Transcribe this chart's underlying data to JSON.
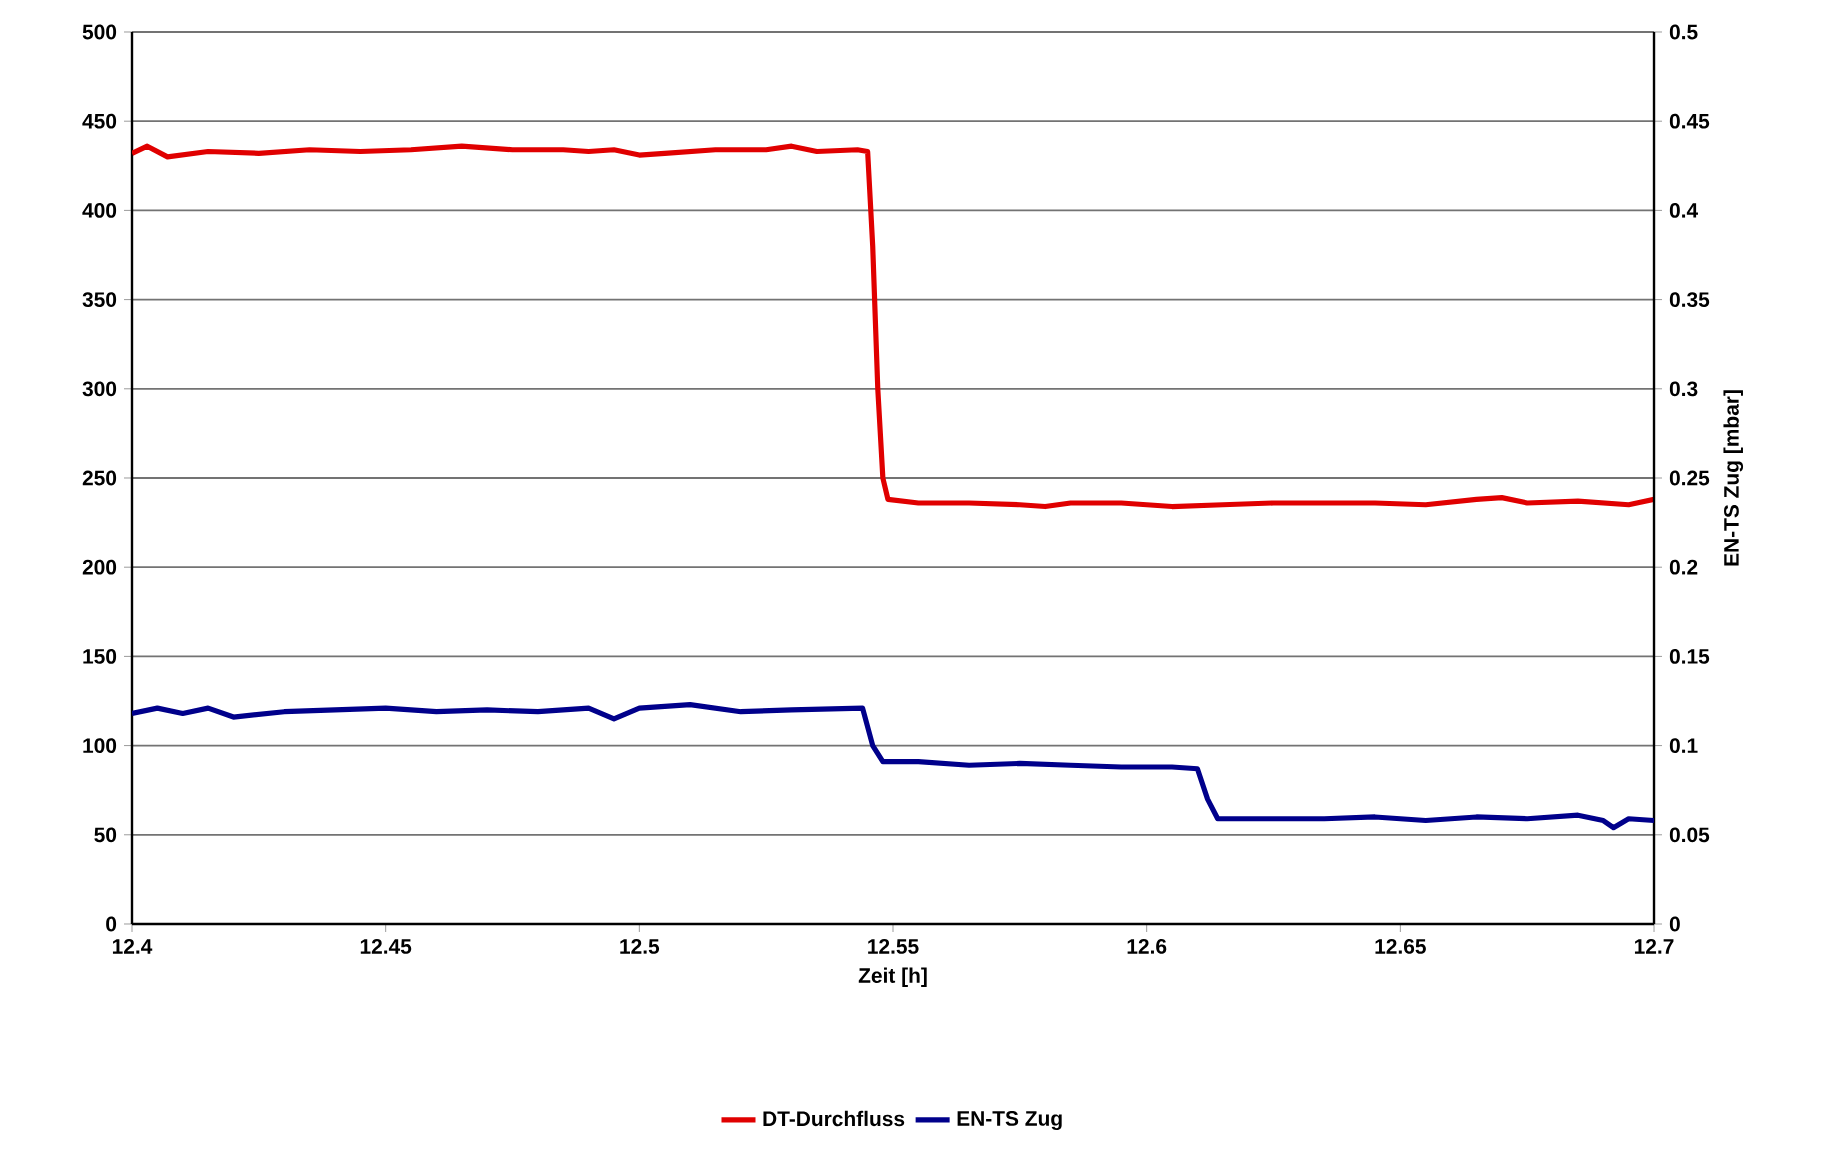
{
  "chart_data": {
    "type": "line",
    "xlabel": "Zeit [h]",
    "y2label": "EN-TS Zug [mbar]",
    "xlim": [
      12.4,
      12.7
    ],
    "xticks": [
      12.4,
      12.45,
      12.5,
      12.55,
      12.6,
      12.65,
      12.7
    ],
    "ylim": [
      0,
      500
    ],
    "yticks": [
      0,
      50,
      100,
      150,
      200,
      250,
      300,
      350,
      400,
      450,
      500
    ],
    "y2lim": [
      0,
      0.5
    ],
    "y2ticks": [
      0,
      0.05,
      0.1,
      0.15,
      0.2,
      0.25,
      0.3,
      0.35,
      0.4,
      0.45,
      0.5
    ],
    "grid": "y",
    "legend": "bottom",
    "marker": "none",
    "line_style": "solid",
    "series": [
      {
        "name": "DT-Durchfluss",
        "color": "#e00000",
        "x": [
          12.4,
          12.403,
          12.407,
          12.415,
          12.425,
          12.435,
          12.445,
          12.455,
          12.465,
          12.475,
          12.485,
          12.49,
          12.495,
          12.5,
          12.505,
          12.515,
          12.525,
          12.53,
          12.535,
          12.543,
          12.545,
          12.546,
          12.547,
          12.548,
          12.549,
          12.555,
          12.565,
          12.575,
          12.58,
          12.585,
          12.595,
          12.605,
          12.615,
          12.625,
          12.635,
          12.645,
          12.655,
          12.665,
          12.67,
          12.675,
          12.685,
          12.695,
          12.7
        ],
        "values": [
          432,
          436,
          430,
          433,
          432,
          434,
          433,
          434,
          436,
          434,
          434,
          433,
          434,
          431,
          432,
          434,
          434,
          436,
          433,
          434,
          433,
          380,
          300,
          250,
          238,
          236,
          236,
          235,
          234,
          236,
          236,
          234,
          235,
          236,
          236,
          236,
          235,
          238,
          239,
          236,
          237,
          235,
          238
        ]
      },
      {
        "name": "EN-TS Zug",
        "color": "#00008b",
        "axis": "y2",
        "x": [
          12.4,
          12.405,
          12.41,
          12.415,
          12.42,
          12.43,
          12.44,
          12.45,
          12.46,
          12.47,
          12.48,
          12.49,
          12.495,
          12.5,
          12.51,
          12.52,
          12.53,
          12.544,
          12.546,
          12.548,
          12.555,
          12.565,
          12.575,
          12.585,
          12.595,
          12.605,
          12.61,
          12.612,
          12.614,
          12.625,
          12.635,
          12.645,
          12.655,
          12.665,
          12.675,
          12.685,
          12.69,
          12.692,
          12.695,
          12.7
        ],
        "values": [
          0.118,
          0.121,
          0.118,
          0.121,
          0.116,
          0.119,
          0.12,
          0.121,
          0.119,
          0.12,
          0.119,
          0.121,
          0.115,
          0.121,
          0.123,
          0.119,
          0.12,
          0.121,
          0.1,
          0.091,
          0.091,
          0.089,
          0.09,
          0.089,
          0.088,
          0.088,
          0.087,
          0.07,
          0.059,
          0.059,
          0.059,
          0.06,
          0.058,
          0.06,
          0.059,
          0.061,
          0.058,
          0.054,
          0.059,
          0.058
        ]
      }
    ]
  }
}
